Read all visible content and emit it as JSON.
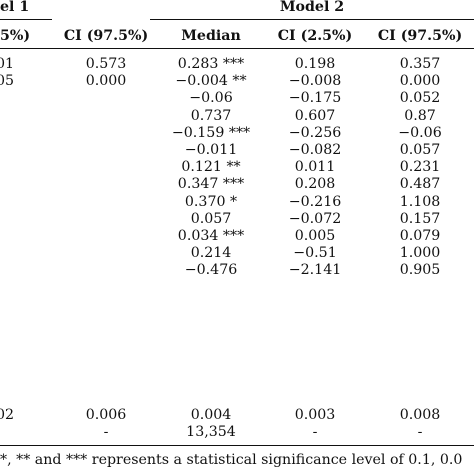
{
  "headers": {
    "model1_fragment": "el 1",
    "model2": "Model 2",
    "col_ci_low_fragment": "5%)",
    "col_ci_high": "CI (97.5%)",
    "col_median": "Median",
    "col_ci_low": "CI (2.5%)",
    "col_ci_high2": "CI (97.5%)"
  },
  "rows": [
    {
      "frag": "01",
      "m1_ci_high": "0.573",
      "median": "0.283 ***",
      "ci_low": "0.198",
      "ci_high": "0.357"
    },
    {
      "frag": "05",
      "m1_ci_high": "0.000",
      "median": "−0.004 **",
      "ci_low": "−0.008",
      "ci_high": "0.000"
    },
    {
      "frag": "",
      "m1_ci_high": "",
      "median": "−0.06",
      "ci_low": "−0.175",
      "ci_high": "0.052"
    },
    {
      "frag": "",
      "m1_ci_high": "",
      "median": "0.737",
      "ci_low": "0.607",
      "ci_high": "0.87"
    },
    {
      "frag": "",
      "m1_ci_high": "",
      "median": "−0.159 ***",
      "ci_low": "−0.256",
      "ci_high": "−0.06"
    },
    {
      "frag": "",
      "m1_ci_high": "",
      "median": "−0.011",
      "ci_low": "−0.082",
      "ci_high": "0.057"
    },
    {
      "frag": "",
      "m1_ci_high": "",
      "median": "0.121 **",
      "ci_low": "0.011",
      "ci_high": "0.231"
    },
    {
      "frag": "",
      "m1_ci_high": "",
      "median": "0.347 ***",
      "ci_low": "0.208",
      "ci_high": "0.487"
    },
    {
      "frag": "",
      "m1_ci_high": "",
      "median": "0.370 *",
      "ci_low": "−0.216",
      "ci_high": "1.108"
    },
    {
      "frag": "",
      "m1_ci_high": "",
      "median": "0.057",
      "ci_low": "−0.072",
      "ci_high": "0.157"
    },
    {
      "frag": "",
      "m1_ci_high": "",
      "median": "0.034 ***",
      "ci_low": "0.005",
      "ci_high": "0.079"
    },
    {
      "frag": "",
      "m1_ci_high": "",
      "median": "0.214",
      "ci_low": "−0.51",
      "ci_high": "1.000"
    },
    {
      "frag": "",
      "m1_ci_high": "",
      "median": "−0.476",
      "ci_low": "−2.141",
      "ci_high": "0.905"
    }
  ],
  "bottom_rows": [
    {
      "frag": "02",
      "m1_ci_high": "0.006",
      "median": "0.004",
      "ci_low": "0.003",
      "ci_high": "0.008"
    },
    {
      "frag": "",
      "m1_ci_high": "-",
      "median": "13,354",
      "ci_low": "-",
      "ci_high": "-"
    }
  ],
  "footnote": "*, ** and *** represents a statistical significance level of 0.1, 0.0"
}
